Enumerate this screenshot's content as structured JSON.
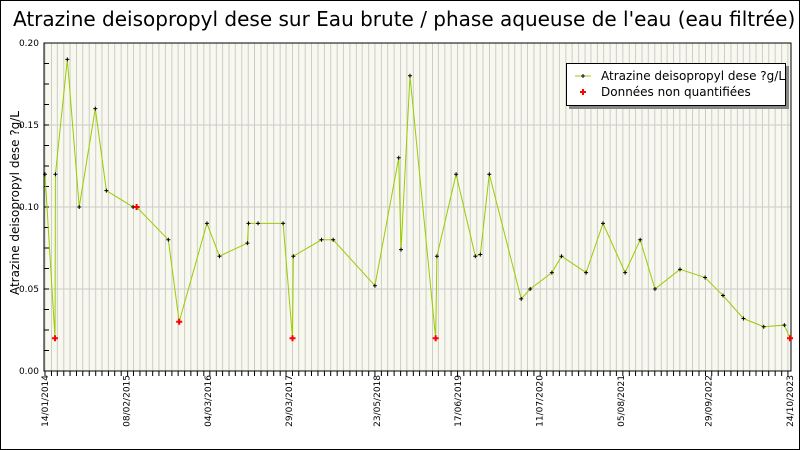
{
  "chart_data": {
    "type": "line",
    "title": "Atrazine deisopropyl dese sur Eau brute / phase aqueuse de l'eau (eau filtrée)",
    "ylabel": "Atrazine deisopropyl dese ?g/L",
    "xlabel": "",
    "ylim": [
      0,
      0.2
    ],
    "xlim": [
      "2014-01-14",
      "2023-10-24"
    ],
    "y_ticks": [
      "0.00",
      "0.05",
      "0.10",
      "0.15",
      "0.20"
    ],
    "x_ticks": [
      "14/01/2014",
      "08/02/2015",
      "04/03/2016",
      "29/03/2017",
      "23/05/2018",
      "17/06/2019",
      "11/07/2020",
      "05/08/2021",
      "29/09/2022",
      "24/10/2023"
    ],
    "grid": true,
    "legend_position": "top-right",
    "colors": {
      "line": "#99cc00",
      "marker": "#000000",
      "non_quantified": "#ff0000",
      "plot_bg": "#f8f8ee",
      "grid": "#cccccc"
    },
    "series": [
      {
        "name": "Atrazine deisopropyl dese ?g/L",
        "points": [
          [
            "2014-01-14",
            0.12,
            false
          ],
          [
            "2014-03-03",
            0.02,
            true
          ],
          [
            "2014-03-05",
            0.12,
            false
          ],
          [
            "2014-05-01",
            0.19,
            false
          ],
          [
            "2014-06-27",
            0.1,
            false
          ],
          [
            "2014-09-12",
            0.16,
            false
          ],
          [
            "2014-11-04",
            0.11,
            false
          ],
          [
            "2015-03-12",
            0.1,
            false
          ],
          [
            "2015-03-29",
            0.1,
            true
          ],
          [
            "2015-08-28",
            0.08,
            false
          ],
          [
            "2015-10-19",
            0.03,
            true
          ],
          [
            "2016-02-29",
            0.09,
            false
          ],
          [
            "2016-04-29",
            0.07,
            false
          ],
          [
            "2016-09-10",
            0.078,
            false
          ],
          [
            "2016-09-15",
            0.09,
            false
          ],
          [
            "2016-10-31",
            0.09,
            false
          ],
          [
            "2017-02-28",
            0.09,
            false
          ],
          [
            "2017-04-14",
            0.02,
            true
          ],
          [
            "2017-04-18",
            0.07,
            false
          ],
          [
            "2017-08-31",
            0.08,
            false
          ],
          [
            "2017-10-26",
            0.08,
            false
          ],
          [
            "2018-05-14",
            0.052,
            false
          ],
          [
            "2018-09-05",
            0.13,
            false
          ],
          [
            "2018-09-16",
            0.074,
            false
          ],
          [
            "2018-10-29",
            0.18,
            false
          ],
          [
            "2019-03-01",
            0.02,
            true
          ],
          [
            "2019-03-07",
            0.07,
            false
          ],
          [
            "2019-06-07",
            0.12,
            false
          ],
          [
            "2019-09-07",
            0.07,
            false
          ],
          [
            "2019-10-01",
            0.071,
            false
          ],
          [
            "2019-11-13",
            0.12,
            false
          ],
          [
            "2020-04-14",
            0.044,
            false
          ],
          [
            "2020-05-27",
            0.05,
            false
          ],
          [
            "2020-09-08",
            0.06,
            false
          ],
          [
            "2020-10-24",
            0.07,
            false
          ],
          [
            "2021-02-19",
            0.06,
            false
          ],
          [
            "2021-05-11",
            0.09,
            false
          ],
          [
            "2021-08-25",
            0.06,
            false
          ],
          [
            "2021-11-05",
            0.08,
            false
          ],
          [
            "2022-01-15",
            0.05,
            false
          ],
          [
            "2022-05-15",
            0.062,
            false
          ],
          [
            "2022-09-12",
            0.057,
            false
          ],
          [
            "2022-12-07",
            0.046,
            false
          ],
          [
            "2023-03-15",
            0.032,
            false
          ],
          [
            "2023-06-20",
            0.027,
            false
          ],
          [
            "2023-09-27",
            0.028,
            false
          ],
          [
            "2023-10-24",
            0.02,
            true
          ]
        ]
      }
    ],
    "legend": [
      "Atrazine deisopropyl dese ?g/L",
      "Données non quantifiées"
    ]
  }
}
